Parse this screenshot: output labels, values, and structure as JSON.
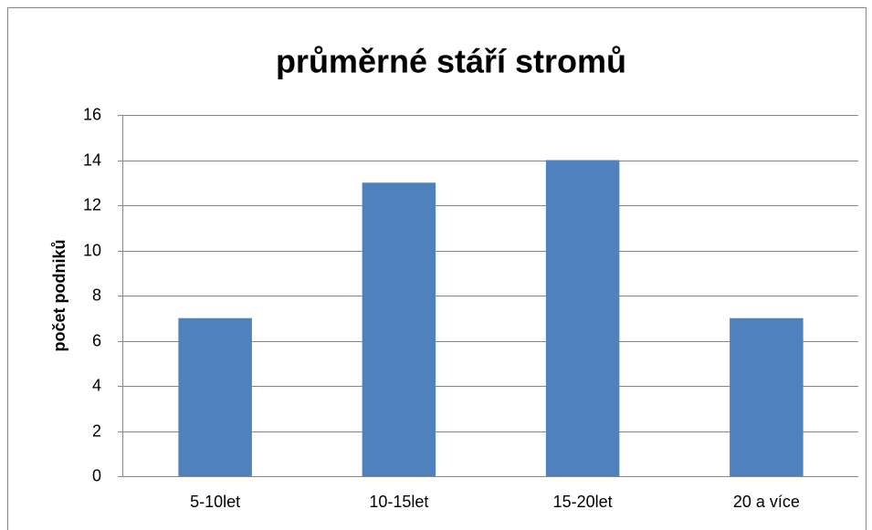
{
  "chart_data": {
    "type": "bar",
    "title": "průměrné stáří stromů",
    "y_label": "počet podniků",
    "categories": [
      "5-10let",
      "10-15let",
      "15-20let",
      "20 a více"
    ],
    "values": [
      7,
      13,
      14,
      7
    ],
    "color": "#4f81bd",
    "ylim": [
      0,
      16
    ],
    "yticks": [
      0,
      2,
      4,
      6,
      8,
      10,
      12,
      14,
      16
    ],
    "grid": true
  }
}
